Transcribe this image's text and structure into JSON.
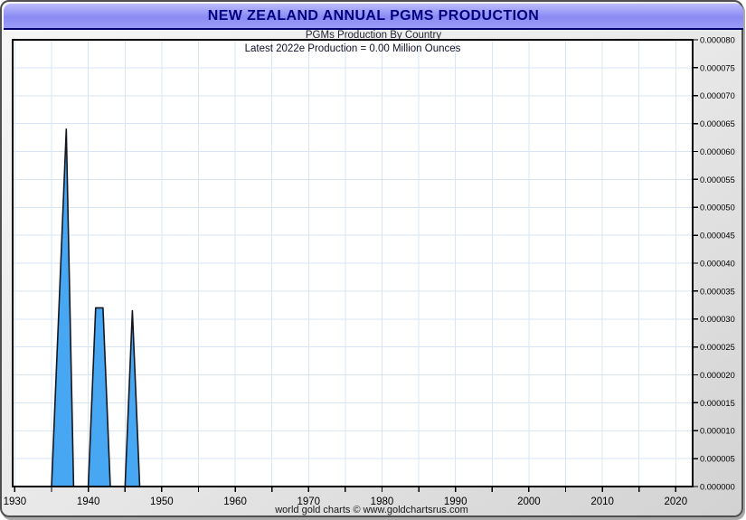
{
  "window": {
    "title": "NEW ZEALAND ANNUAL PGMS PRODUCTION"
  },
  "chart": {
    "subtitle": "PGMs Production By Country",
    "annotation": "Latest 2022e Production = 0.00 Million Ounces",
    "footer": "world gold charts © www.goldchartsrus.com"
  },
  "colors": {
    "title_text": "#000080",
    "titlebar_top": "#bcbcfc",
    "titlebar_bottom": "#8a8af3",
    "area_fill": "#47a7f2",
    "area_stroke": "#16161e",
    "gridline": "#d9e5f3",
    "plot_border": "#000000",
    "plot_background": "#ffffff",
    "chrome_background": "#e3e3e3",
    "tick_label": "#000000"
  },
  "chart_data": {
    "type": "area",
    "title": "NEW ZEALAND ANNUAL PGMS PRODUCTION",
    "subtitle": "PGMs Production By Country",
    "annotation": "Latest 2022e Production = 0.00 Million Ounces",
    "xlabel": "",
    "ylabel": "",
    "y_units": "Million Ounces",
    "legend": null,
    "grid": true,
    "xlim": [
      1929.7,
      2022.3
    ],
    "ylim": [
      0,
      8e-05
    ],
    "x_ticks": [
      1930,
      1940,
      1950,
      1960,
      1970,
      1980,
      1990,
      2000,
      2010,
      2020
    ],
    "x_minor_ticks": [
      1930,
      1935,
      1940,
      1945,
      1950,
      1955,
      1960,
      1965,
      1970,
      1975,
      1980,
      1985,
      1990,
      1995,
      2000,
      2005,
      2010,
      2015,
      2020
    ],
    "y_tick_step": 5e-06,
    "y_tick_labels": [
      "0.000000",
      "0.000005",
      "0.000010",
      "0.000015",
      "0.000020",
      "0.000025",
      "0.000030",
      "0.000035",
      "0.000040",
      "0.000045",
      "0.000050",
      "0.000055",
      "0.000060",
      "0.000065",
      "0.000070",
      "0.000075",
      "0.000080"
    ],
    "series": [
      {
        "name": "PGMs Production",
        "points": [
          [
            1930,
            0
          ],
          [
            1934,
            0
          ],
          [
            1935,
            0
          ],
          [
            1936,
            3.2e-05
          ],
          [
            1937,
            6.4e-05
          ],
          [
            1938,
            0
          ],
          [
            1939,
            0
          ],
          [
            1940,
            0
          ],
          [
            1941,
            3.2e-05
          ],
          [
            1942,
            3.2e-05
          ],
          [
            1943,
            0
          ],
          [
            1944,
            0
          ],
          [
            1945,
            0
          ],
          [
            1946,
            3.15e-05
          ],
          [
            1947,
            0
          ],
          [
            1950,
            0
          ],
          [
            1955,
            0
          ],
          [
            1960,
            0
          ],
          [
            1965,
            0
          ],
          [
            1970,
            0
          ],
          [
            1975,
            0
          ],
          [
            1980,
            0
          ],
          [
            1985,
            0
          ],
          [
            1990,
            0
          ],
          [
            1995,
            0
          ],
          [
            2000,
            0
          ],
          [
            2005,
            0
          ],
          [
            2010,
            0
          ],
          [
            2015,
            0
          ],
          [
            2020,
            0
          ],
          [
            2022,
            0
          ]
        ]
      }
    ]
  }
}
